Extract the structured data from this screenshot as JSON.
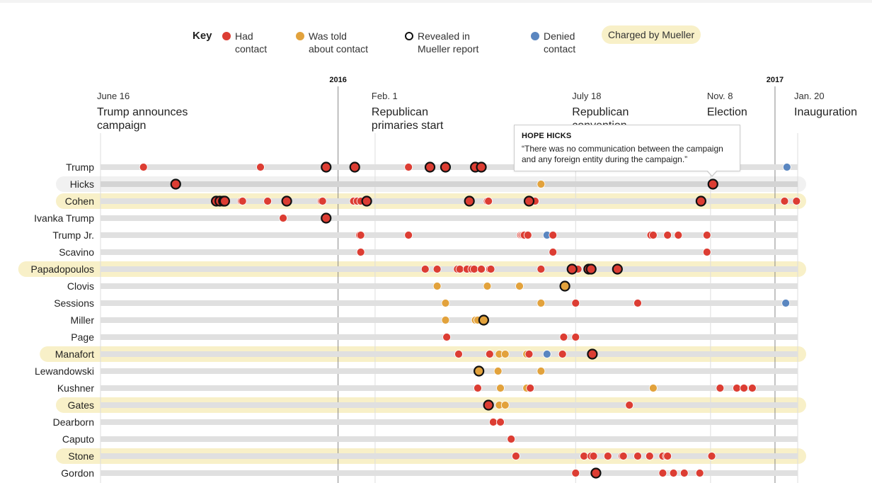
{
  "legend": {
    "title": "Key",
    "items": [
      {
        "label": "Had contact",
        "type": "had",
        "lines": [
          "Had",
          "contact"
        ]
      },
      {
        "label": "Was told about contact",
        "type": "told",
        "lines": [
          "Was told",
          "about contact"
        ]
      },
      {
        "label": "Revealed in Mueller report",
        "type": "revealed",
        "lines": [
          "Revealed in",
          "Mueller report"
        ]
      },
      {
        "label": "Denied contact",
        "type": "denied",
        "lines": [
          "Denied",
          "contact"
        ]
      }
    ],
    "charged_label": "Charged by Mueller"
  },
  "colors": {
    "had": "#dc3d33",
    "told": "#e2a23c",
    "denied": "#5a86c0",
    "revealed_stroke": "#111111",
    "charged_bg": "#f8f0c8",
    "hover_bg": "#ececec",
    "track": "#e0e0e0"
  },
  "tooltip": {
    "name": "HOPE HICKS",
    "quote": "“There was no communication between the campaign and any foreign entity during the campaign.”"
  },
  "chart_data": {
    "type": "scatter",
    "title": "",
    "x_unit": "days since June 16, 2015",
    "xlim": [
      0,
      584
    ],
    "year_markers": [
      {
        "label": "2016",
        "day": 199
      },
      {
        "label": "2017",
        "day": 565
      }
    ],
    "events": [
      {
        "date": "June 16",
        "lines": [
          "Trump announces",
          "campaign"
        ],
        "day": 0
      },
      {
        "date": "Feb. 1",
        "lines": [
          "Republican",
          "primaries start"
        ],
        "day": 230
      },
      {
        "date": "July 18",
        "lines": [
          "Republican",
          "convention"
        ],
        "day": 398
      },
      {
        "date": "Nov. 8",
        "lines": [
          "Election"
        ],
        "day": 511
      },
      {
        "date": "Jan. 20",
        "lines": [
          "Inauguration"
        ],
        "day": 584
      }
    ],
    "rows": [
      {
        "name": "Trump",
        "charged": false,
        "highlight": false,
        "dots": [
          {
            "day": 36,
            "t": "had"
          },
          {
            "day": 134,
            "t": "had"
          },
          {
            "day": 189,
            "t": "had",
            "r": true
          },
          {
            "day": 213,
            "t": "had",
            "r": true
          },
          {
            "day": 258,
            "t": "had"
          },
          {
            "day": 276,
            "t": "had",
            "r": true
          },
          {
            "day": 289,
            "t": "had",
            "r": true
          },
          {
            "day": 314,
            "t": "had",
            "r": true
          },
          {
            "day": 319,
            "t": "had",
            "r": true
          },
          {
            "day": 575,
            "t": "denied"
          }
        ]
      },
      {
        "name": "Hicks",
        "charged": false,
        "highlight": true,
        "dots": [
          {
            "day": 63,
            "t": "had",
            "r": true
          },
          {
            "day": 369,
            "t": "told"
          },
          {
            "day": 513,
            "t": "had",
            "r": true
          }
        ]
      },
      {
        "name": "Cohen",
        "charged": true,
        "highlight": false,
        "dots": [
          {
            "day": 97,
            "t": "had",
            "r": true
          },
          {
            "day": 100,
            "t": "had",
            "r": true
          },
          {
            "day": 103,
            "t": "had",
            "r": true
          },
          {
            "day": 104,
            "t": "had",
            "r": true
          },
          {
            "day": 118,
            "t": "had"
          },
          {
            "day": 119,
            "t": "had"
          },
          {
            "day": 140,
            "t": "had"
          },
          {
            "day": 156,
            "t": "had",
            "r": true
          },
          {
            "day": 185,
            "t": "had"
          },
          {
            "day": 186,
            "t": "had"
          },
          {
            "day": 212,
            "t": "had"
          },
          {
            "day": 215,
            "t": "had"
          },
          {
            "day": 218,
            "t": "had"
          },
          {
            "day": 223,
            "t": "had",
            "r": true
          },
          {
            "day": 309,
            "t": "had",
            "r": true
          },
          {
            "day": 324,
            "t": "had"
          },
          {
            "day": 325,
            "t": "had"
          },
          {
            "day": 359,
            "t": "had",
            "r": true
          },
          {
            "day": 364,
            "t": "had"
          },
          {
            "day": 503,
            "t": "had",
            "r": true
          },
          {
            "day": 573,
            "t": "had"
          },
          {
            "day": 583,
            "t": "had"
          }
        ]
      },
      {
        "name": "Ivanka Trump",
        "charged": false,
        "highlight": false,
        "dots": [
          {
            "day": 153,
            "t": "had"
          },
          {
            "day": 189,
            "t": "had",
            "r": true
          }
        ]
      },
      {
        "name": "Trump Jr.",
        "charged": false,
        "highlight": false,
        "dots": [
          {
            "day": 217,
            "t": "had"
          },
          {
            "day": 218,
            "t": "had"
          },
          {
            "day": 258,
            "t": "had"
          },
          {
            "day": 352,
            "t": "had"
          },
          {
            "day": 353,
            "t": "had"
          },
          {
            "day": 354,
            "t": "had"
          },
          {
            "day": 355,
            "t": "had"
          },
          {
            "day": 358,
            "t": "had"
          },
          {
            "day": 374,
            "t": "denied"
          },
          {
            "day": 379,
            "t": "had"
          },
          {
            "day": 461,
            "t": "had"
          },
          {
            "day": 463,
            "t": "had"
          },
          {
            "day": 475,
            "t": "had"
          },
          {
            "day": 484,
            "t": "had"
          },
          {
            "day": 508,
            "t": "had"
          }
        ]
      },
      {
        "name": "Scavino",
        "charged": false,
        "highlight": false,
        "dots": [
          {
            "day": 218,
            "t": "had"
          },
          {
            "day": 379,
            "t": "had"
          },
          {
            "day": 508,
            "t": "had"
          }
        ]
      },
      {
        "name": "Papadopoulos",
        "charged": true,
        "highlight": false,
        "dots": [
          {
            "day": 272,
            "t": "had"
          },
          {
            "day": 282,
            "t": "had"
          },
          {
            "day": 299,
            "t": "had"
          },
          {
            "day": 301,
            "t": "had"
          },
          {
            "day": 307,
            "t": "had"
          },
          {
            "day": 311,
            "t": "had"
          },
          {
            "day": 313,
            "t": "had"
          },
          {
            "day": 319,
            "t": "had"
          },
          {
            "day": 326,
            "t": "had"
          },
          {
            "day": 327,
            "t": "had"
          },
          {
            "day": 369,
            "t": "had"
          },
          {
            "day": 395,
            "t": "had",
            "r": true
          },
          {
            "day": 400,
            "t": "had"
          },
          {
            "day": 409,
            "t": "had",
            "r": true
          },
          {
            "day": 411,
            "t": "had",
            "r": true
          },
          {
            "day": 433,
            "t": "had",
            "r": true
          }
        ]
      },
      {
        "name": "Clovis",
        "charged": false,
        "highlight": false,
        "dots": [
          {
            "day": 282,
            "t": "told"
          },
          {
            "day": 324,
            "t": "told"
          },
          {
            "day": 351,
            "t": "told"
          },
          {
            "day": 389,
            "t": "told",
            "r": true
          }
        ]
      },
      {
        "name": "Sessions",
        "charged": false,
        "highlight": false,
        "dots": [
          {
            "day": 289,
            "t": "told"
          },
          {
            "day": 369,
            "t": "told"
          },
          {
            "day": 398,
            "t": "had"
          },
          {
            "day": 450,
            "t": "had"
          },
          {
            "day": 574,
            "t": "denied"
          }
        ]
      },
      {
        "name": "Miller",
        "charged": false,
        "highlight": false,
        "dots": [
          {
            "day": 289,
            "t": "told"
          },
          {
            "day": 314,
            "t": "told"
          },
          {
            "day": 316,
            "t": "told"
          },
          {
            "day": 321,
            "t": "told",
            "r": true
          }
        ]
      },
      {
        "name": "Page",
        "charged": false,
        "highlight": false,
        "dots": [
          {
            "day": 290,
            "t": "had"
          },
          {
            "day": 388,
            "t": "had"
          },
          {
            "day": 398,
            "t": "had"
          }
        ]
      },
      {
        "name": "Manafort",
        "charged": true,
        "highlight": false,
        "dots": [
          {
            "day": 300,
            "t": "had"
          },
          {
            "day": 326,
            "t": "had"
          },
          {
            "day": 334,
            "t": "told"
          },
          {
            "day": 339,
            "t": "told"
          },
          {
            "day": 357,
            "t": "told"
          },
          {
            "day": 359,
            "t": "had"
          },
          {
            "day": 374,
            "t": "denied"
          },
          {
            "day": 387,
            "t": "had"
          },
          {
            "day": 411,
            "t": "had"
          },
          {
            "day": 412,
            "t": "had",
            "r": true
          }
        ]
      },
      {
        "name": "Lewandowski",
        "charged": false,
        "highlight": false,
        "dots": [
          {
            "day": 317,
            "t": "told",
            "r": true
          },
          {
            "day": 333,
            "t": "told"
          },
          {
            "day": 369,
            "t": "told"
          }
        ]
      },
      {
        "name": "Kushner",
        "charged": false,
        "highlight": false,
        "dots": [
          {
            "day": 316,
            "t": "had"
          },
          {
            "day": 335,
            "t": "told"
          },
          {
            "day": 357,
            "t": "told"
          },
          {
            "day": 360,
            "t": "had"
          },
          {
            "day": 463,
            "t": "told"
          },
          {
            "day": 519,
            "t": "had"
          },
          {
            "day": 533,
            "t": "had"
          },
          {
            "day": 539,
            "t": "had"
          },
          {
            "day": 546,
            "t": "had"
          }
        ]
      },
      {
        "name": "Gates",
        "charged": true,
        "highlight": false,
        "dots": [
          {
            "day": 325,
            "t": "had",
            "r": true
          },
          {
            "day": 334,
            "t": "told"
          },
          {
            "day": 339,
            "t": "told"
          },
          {
            "day": 443,
            "t": "had"
          }
        ]
      },
      {
        "name": "Dearborn",
        "charged": false,
        "highlight": false,
        "dots": [
          {
            "day": 329,
            "t": "had"
          },
          {
            "day": 335,
            "t": "had"
          }
        ]
      },
      {
        "name": "Caputo",
        "charged": false,
        "highlight": false,
        "dots": [
          {
            "day": 344,
            "t": "had"
          }
        ]
      },
      {
        "name": "Stone",
        "charged": true,
        "highlight": false,
        "dots": [
          {
            "day": 348,
            "t": "had"
          },
          {
            "day": 405,
            "t": "had"
          },
          {
            "day": 411,
            "t": "had"
          },
          {
            "day": 413,
            "t": "had"
          },
          {
            "day": 425,
            "t": "had"
          },
          {
            "day": 437,
            "t": "had"
          },
          {
            "day": 438,
            "t": "had"
          },
          {
            "day": 450,
            "t": "had"
          },
          {
            "day": 460,
            "t": "had"
          },
          {
            "day": 471,
            "t": "had"
          },
          {
            "day": 474,
            "t": "had"
          },
          {
            "day": 475,
            "t": "had"
          },
          {
            "day": 512,
            "t": "had"
          }
        ]
      },
      {
        "name": "Gordon",
        "charged": false,
        "highlight": false,
        "dots": [
          {
            "day": 398,
            "t": "had"
          },
          {
            "day": 415,
            "t": "had",
            "r": true
          },
          {
            "day": 471,
            "t": "had"
          },
          {
            "day": 480,
            "t": "had"
          },
          {
            "day": 489,
            "t": "had"
          },
          {
            "day": 502,
            "t": "had"
          }
        ]
      }
    ]
  }
}
